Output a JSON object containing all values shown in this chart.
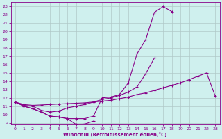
{
  "xlabel": "Windchill (Refroidissement éolien,°C)",
  "x_values": [
    0,
    1,
    2,
    3,
    4,
    5,
    6,
    7,
    8,
    9,
    10,
    11,
    12,
    13,
    14,
    15,
    16,
    17,
    18,
    19,
    20,
    21,
    22,
    23
  ],
  "line1": [
    11.5,
    11.0,
    10.7,
    10.3,
    9.8,
    9.7,
    9.5,
    8.8,
    8.85,
    9.2,
    null,
    null,
    null,
    null,
    null,
    null,
    null,
    null,
    null,
    null,
    null,
    null,
    null,
    null
  ],
  "line2": [
    11.5,
    11.0,
    10.7,
    10.3,
    9.8,
    9.7,
    9.5,
    9.5,
    9.5,
    9.8,
    12.0,
    12.1,
    12.4,
    13.8,
    17.3,
    19.0,
    22.3,
    23.0,
    22.4,
    null,
    null,
    null,
    null,
    null
  ],
  "line3": [
    11.5,
    11.1,
    11.0,
    10.5,
    10.3,
    10.4,
    10.8,
    11.0,
    11.2,
    11.5,
    11.8,
    12.0,
    12.3,
    12.7,
    13.3,
    14.9,
    16.8,
    null,
    null,
    null,
    null,
    null,
    null,
    null
  ],
  "line4": [
    11.5,
    11.2,
    11.1,
    11.15,
    11.2,
    11.25,
    11.3,
    11.35,
    11.4,
    11.5,
    11.6,
    11.7,
    11.9,
    12.1,
    12.4,
    12.6,
    12.9,
    13.2,
    13.5,
    13.8,
    14.2,
    14.6,
    15.0,
    12.2
  ],
  "line5": [
    11.5,
    11.2,
    11.1,
    11.15,
    11.2,
    11.25,
    11.3,
    11.35,
    11.4,
    11.5,
    11.6,
    11.7,
    11.9,
    12.1,
    12.4,
    12.6,
    12.9,
    13.2,
    13.5,
    13.8,
    14.2,
    14.6,
    null,
    null
  ],
  "bg_color": "#cff0ee",
  "grid_color": "#b0c8c8",
  "line_color": "#880088",
  "ylim": [
    9,
    23
  ],
  "xlim": [
    0,
    23
  ],
  "yticks": [
    9,
    10,
    11,
    12,
    13,
    14,
    15,
    16,
    17,
    18,
    19,
    20,
    21,
    22,
    23
  ],
  "xticks": [
    0,
    1,
    2,
    3,
    4,
    5,
    6,
    7,
    8,
    9,
    10,
    11,
    12,
    13,
    14,
    15,
    16,
    17,
    18,
    19,
    20,
    21,
    22,
    23
  ]
}
